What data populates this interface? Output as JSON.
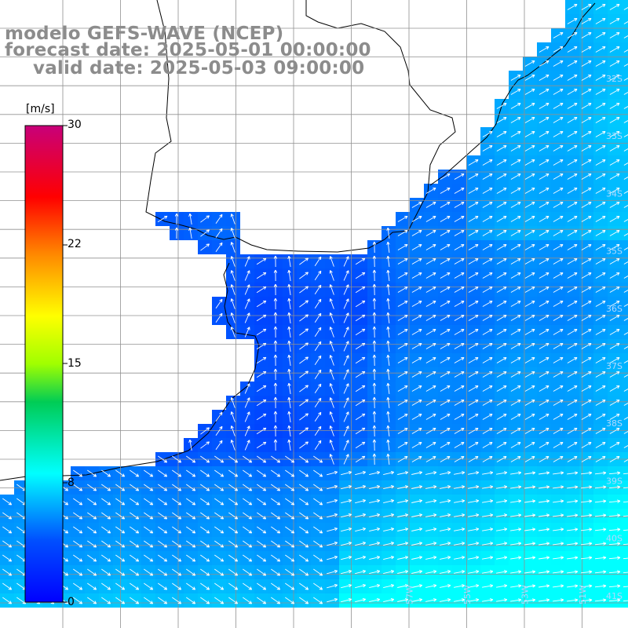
{
  "title": {
    "line1": "modelo GEFS-WAVE (NCEP)",
    "line2": "forecast date: 2025-05-01 00:00:00",
    "line3": "valid date: 2025-05-03 09:00:00"
  },
  "colorbar": {
    "unit": "[m/s]",
    "ticks": [
      "30",
      "22",
      "15",
      "8",
      "0"
    ],
    "tick_values": [
      30,
      22,
      15,
      8,
      0
    ],
    "colors": [
      "#0000ff",
      "#00aaff",
      "#00ffff",
      "#00dd00",
      "#ffff00",
      "#ff8800",
      "#ff0000",
      "#c80080"
    ]
  },
  "grid": {
    "lat_labels": [
      "32S",
      "33S",
      "34S",
      "35S",
      "36S",
      "37S",
      "38S",
      "39S",
      "40S",
      "41S"
    ],
    "lon_labels": [
      "51W",
      "53W",
      "55W",
      "57W"
    ]
  },
  "colors": {
    "land": "#ffffff",
    "coast": "#000000",
    "grid": "#909090",
    "arrow": "#ffffff",
    "title": "#8c8c8c"
  }
}
